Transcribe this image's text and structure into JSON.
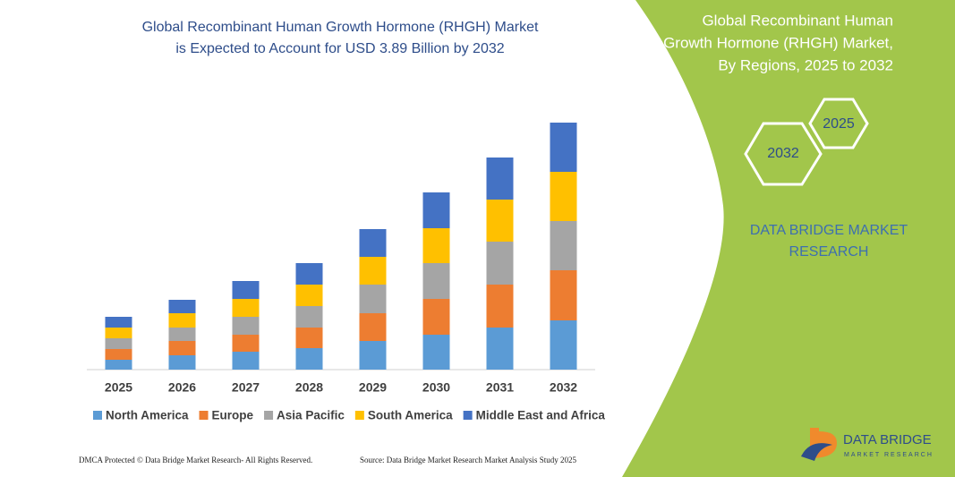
{
  "chart_data": {
    "type": "bar",
    "stacked": true,
    "title": [
      "Global Recombinant Human Growth Hormone (RHGH) Market",
      "is Expected to Account for USD 3.89 Billion by 2032"
    ],
    "categories": [
      "2025",
      "2026",
      "2027",
      "2028",
      "2029",
      "2030",
      "2031",
      "2032"
    ],
    "series": [
      {
        "name": "North America",
        "color": "#5b9bd5",
        "values": [
          11,
          16,
          20,
          24,
          32,
          39,
          47,
          55
        ]
      },
      {
        "name": "Europe",
        "color": "#ed7d31",
        "values": [
          12,
          16,
          19,
          23,
          31,
          40,
          48,
          56
        ]
      },
      {
        "name": "Asia Pacific",
        "color": "#a5a5a5",
        "values": [
          12,
          15,
          20,
          24,
          32,
          40,
          48,
          55
        ]
      },
      {
        "name": "South America",
        "color": "#ffc000",
        "values": [
          12,
          16,
          20,
          24,
          31,
          39,
          47,
          55
        ]
      },
      {
        "name": "Middle East and Africa",
        "color": "#4472c4",
        "values": [
          12,
          15,
          20,
          24,
          31,
          40,
          47,
          55
        ]
      }
    ]
  },
  "panel": {
    "title": [
      "Global Recombinant Human",
      "Growth Hormone (RHGH) Market,",
      "By Regions, 2025 to 2032"
    ],
    "hexagons": [
      "2025",
      "2032"
    ],
    "brand": [
      "DATA BRIDGE MARKET",
      "RESEARCH"
    ]
  },
  "logo": {
    "name": "DATA BRIDGE",
    "tagline": "MARKET RESEARCH"
  },
  "footer": {
    "left": "DMCA Protected © Data Bridge Market Research- All Rights Reserved.",
    "right": "Source: Data Bridge Market Research Market Analysis Study 2025"
  }
}
